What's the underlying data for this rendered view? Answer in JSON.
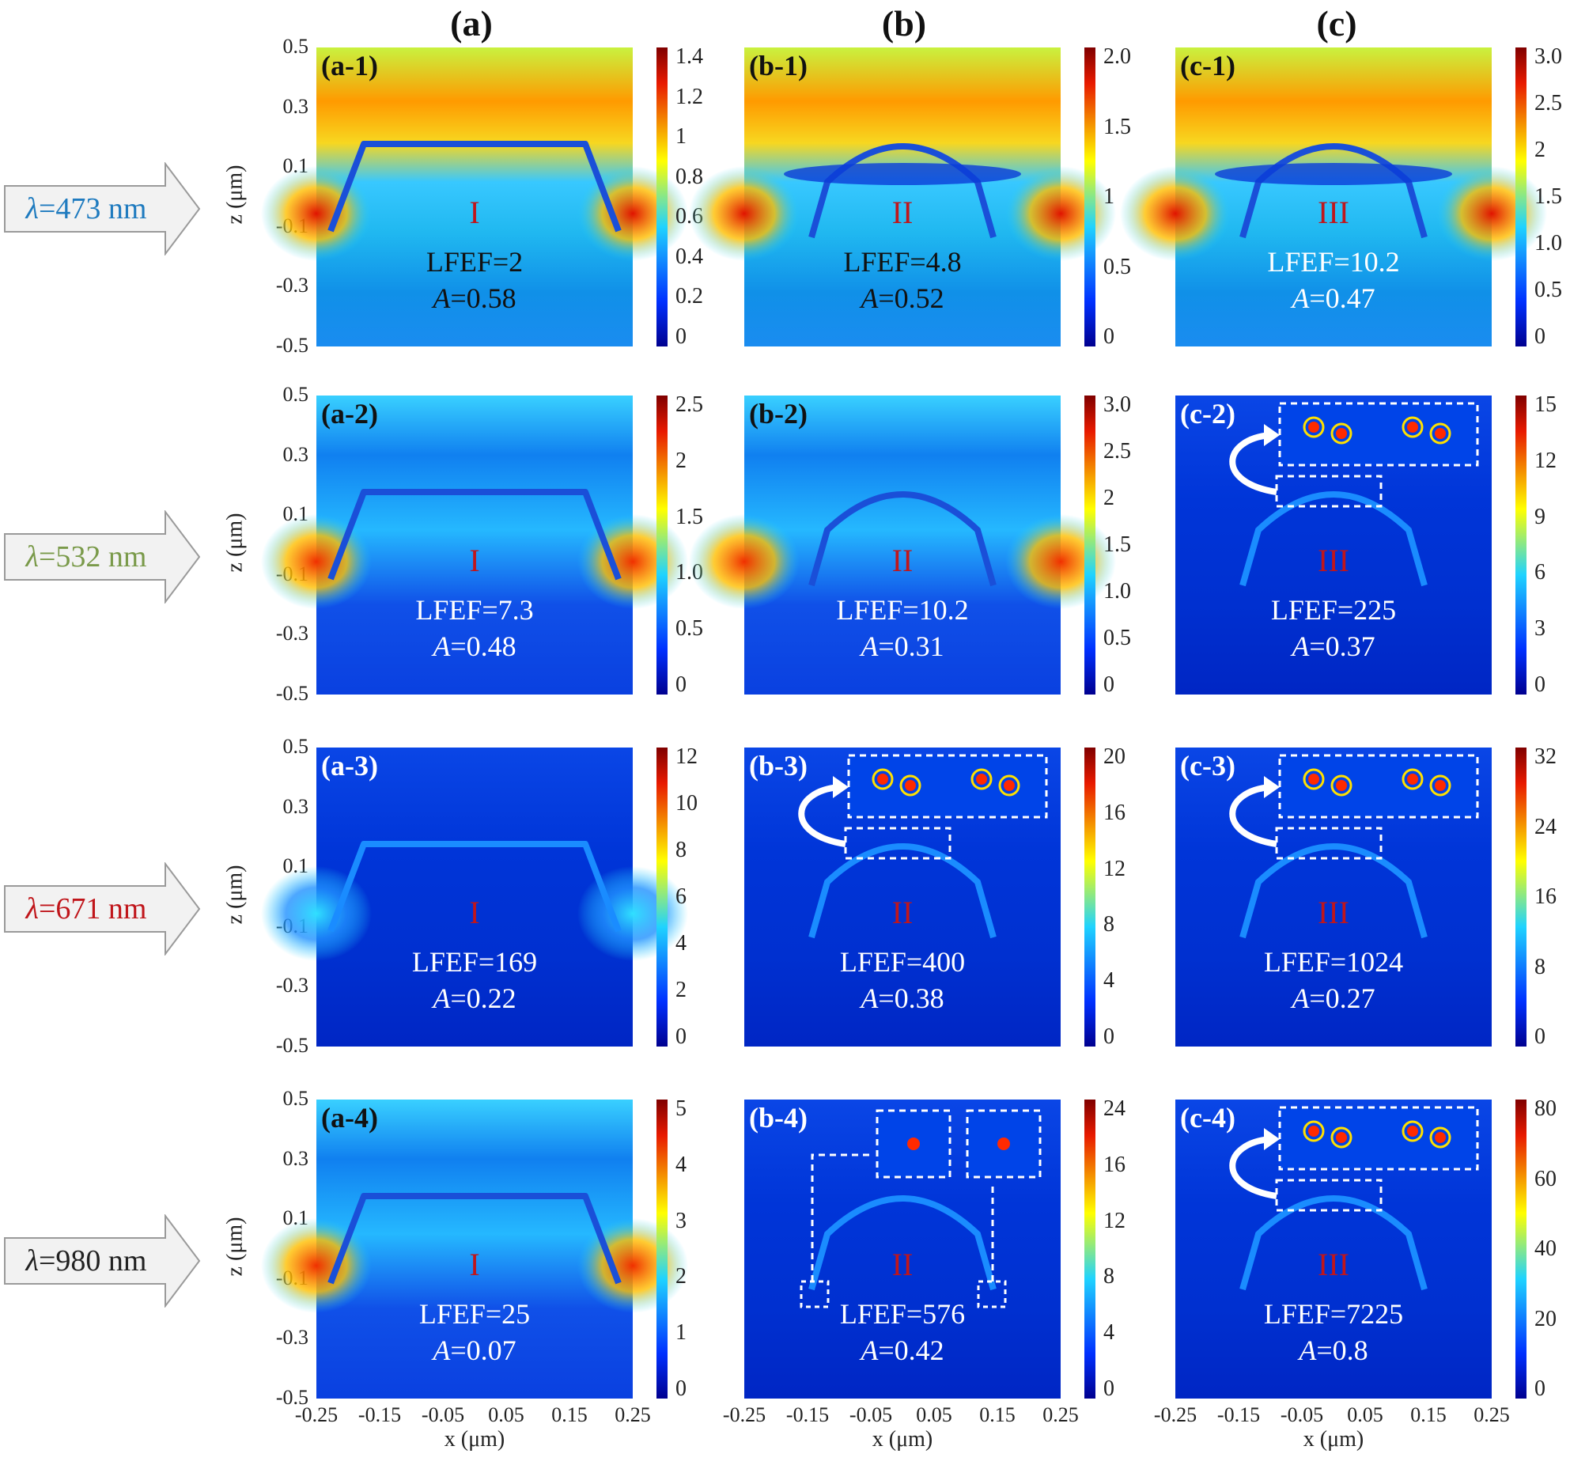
{
  "columns": [
    "(a)",
    "(b)",
    "(c)"
  ],
  "rows": [
    {
      "lambda_symbol": "λ",
      "lambda_rest": "=473 nm",
      "color": "#1f7bbf"
    },
    {
      "lambda_symbol": "λ",
      "lambda_rest": "=532 nm",
      "color": "#7a9a4a"
    },
    {
      "lambda_symbol": "λ",
      "lambda_rest": "=671 nm",
      "color": "#c0161b"
    },
    {
      "lambda_symbol": "λ",
      "lambda_rest": "=980 nm",
      "color": "#222222"
    }
  ],
  "axes": {
    "y_ticks": [
      "0.5",
      "0.3",
      "0.1",
      "-0.1",
      "-0.3",
      "-0.5"
    ],
    "y_label": "z (μm)",
    "x_ticks": [
      "-0.25",
      "-0.15",
      "-0.05",
      "0.05",
      "0.15",
      "0.25"
    ],
    "x_label": "x (μm)"
  },
  "panels": [
    {
      "id": "a-1",
      "label": "(a-1)",
      "region": "I",
      "lfef": "LFEF=2",
      "a_prefix": "A",
      "a_value": "=0.58",
      "colorbar": [
        "1.4",
        "1.2",
        "1",
        "0.8",
        "0.6",
        "0.4",
        "0.2",
        "0"
      ],
      "cbmax": 1.4,
      "row": 0,
      "col": 0,
      "theme": "light",
      "inset": "none"
    },
    {
      "id": "b-1",
      "label": "(b-1)",
      "region": "II",
      "lfef": "LFEF=4.8",
      "a_prefix": "A",
      "a_value": "=0.52",
      "colorbar": [
        "2.0",
        "1.5",
        "1",
        "0.5",
        "0"
      ],
      "cbmax": 2.0,
      "row": 0,
      "col": 1,
      "theme": "light",
      "inset": "none"
    },
    {
      "id": "c-1",
      "label": "(c-1)",
      "region": "III",
      "lfef": "LFEF=10.2",
      "a_prefix": "A",
      "a_value": "=0.47",
      "colorbar": [
        "3.0",
        "2.5",
        "2",
        "1.5",
        "1.0",
        "0.5",
        "0"
      ],
      "cbmax": 3.0,
      "row": 0,
      "col": 2,
      "theme": "light",
      "inset": "none"
    },
    {
      "id": "a-2",
      "label": "(a-2)",
      "region": "I",
      "lfef": "LFEF=7.3",
      "a_prefix": "A",
      "a_value": "=0.48",
      "colorbar": [
        "2.5",
        "2",
        "1.5",
        "1.0",
        "0.5",
        "0"
      ],
      "cbmax": 2.5,
      "row": 1,
      "col": 0,
      "theme": "mid",
      "inset": "none"
    },
    {
      "id": "b-2",
      "label": "(b-2)",
      "region": "II",
      "lfef": "LFEF=10.2",
      "a_prefix": "A",
      "a_value": "=0.31",
      "colorbar": [
        "3.0",
        "2.5",
        "2",
        "1.5",
        "1.0",
        "0.5",
        "0"
      ],
      "cbmax": 3.0,
      "row": 1,
      "col": 1,
      "theme": "mid",
      "inset": "none"
    },
    {
      "id": "c-2",
      "label": "(c-2)",
      "region": "III",
      "lfef": "LFEF=225",
      "a_prefix": "A",
      "a_value": "=0.37",
      "colorbar": [
        "15",
        "12",
        "9",
        "6",
        "3",
        "0"
      ],
      "cbmax": 15,
      "row": 1,
      "col": 2,
      "theme": "dark",
      "inset": "curved"
    },
    {
      "id": "a-3",
      "label": "(a-3)",
      "region": "I",
      "lfef": "LFEF=169",
      "a_prefix": "A",
      "a_value": "=0.22",
      "colorbar": [
        "12",
        "10",
        "8",
        "6",
        "4",
        "2",
        "0"
      ],
      "cbmax": 12,
      "row": 2,
      "col": 0,
      "theme": "dark",
      "inset": "none"
    },
    {
      "id": "b-3",
      "label": "(b-3)",
      "region": "II",
      "lfef": "LFEF=400",
      "a_prefix": "A",
      "a_value": "=0.38",
      "colorbar": [
        "20",
        "16",
        "12",
        "8",
        "4",
        "0"
      ],
      "cbmax": 20,
      "row": 2,
      "col": 1,
      "theme": "dark",
      "inset": "curved"
    },
    {
      "id": "c-3",
      "label": "(c-3)",
      "region": "III",
      "lfef": "LFEF=1024",
      "a_prefix": "A",
      "a_value": "=0.27",
      "colorbar": [
        "32",
        "24",
        "16",
        "8",
        "0"
      ],
      "cbmax": 32,
      "row": 2,
      "col": 2,
      "theme": "dark",
      "inset": "curved"
    },
    {
      "id": "a-4",
      "label": "(a-4)",
      "region": "I",
      "lfef": "LFEF=25",
      "a_prefix": "A",
      "a_value": "=0.07",
      "colorbar": [
        "5",
        "4",
        "3",
        "2",
        "1",
        "0"
      ],
      "cbmax": 5,
      "row": 3,
      "col": 0,
      "theme": "mid",
      "inset": "none"
    },
    {
      "id": "b-4",
      "label": "(b-4)",
      "region": "II",
      "lfef": "LFEF=576",
      "a_prefix": "A",
      "a_value": "=0.42",
      "colorbar": [
        "24",
        "16",
        "12",
        "8",
        "4",
        "0"
      ],
      "cbmax": 24,
      "row": 3,
      "col": 1,
      "theme": "dark",
      "inset": "double"
    },
    {
      "id": "c-4",
      "label": "(c-4)",
      "region": "III",
      "lfef": "LFEF=7225",
      "a_prefix": "A",
      "a_value": "=0.8",
      "colorbar": [
        "80",
        "60",
        "40",
        "20",
        "0"
      ],
      "cbmax": 80,
      "row": 3,
      "col": 2,
      "theme": "dark",
      "inset": "curved"
    }
  ],
  "colors": {
    "jet_dark": "#00008f",
    "jet_blue": "#0030ff",
    "jet_cyan": "#1fd3ff",
    "jet_yellow": "#ffff00",
    "jet_red": "#e81a00",
    "jet_darkred": "#800000"
  }
}
